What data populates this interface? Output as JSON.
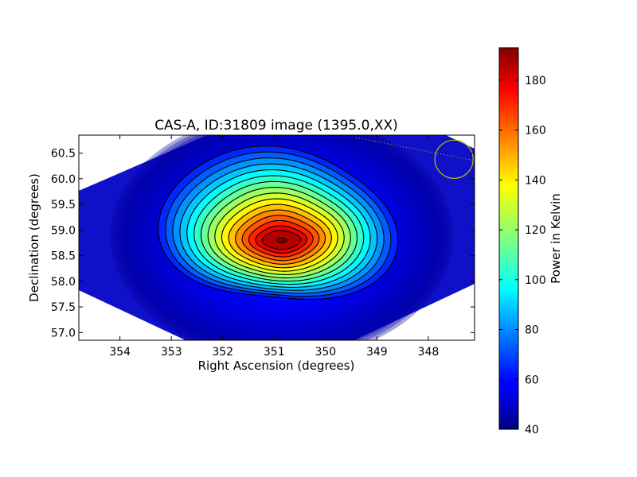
{
  "chart_data": {
    "type": "heatmap",
    "title": "CAS-A, ID:31809 image (1395.0,XX)",
    "xlabel": "Right Ascension (degrees)",
    "ylabel": "Declination (degrees)",
    "xlim": [
      354.8,
      347.1
    ],
    "ylim": [
      56.85,
      60.85
    ],
    "x_ticks": [
      354,
      353,
      352,
      351,
      350,
      349,
      348
    ],
    "x_tick_labels": [
      "354",
      "353",
      "352",
      "351",
      "350",
      "349",
      "348"
    ],
    "y_ticks": [
      57.0,
      57.5,
      58.0,
      58.5,
      59.0,
      59.5,
      60.0,
      60.5
    ],
    "y_tick_labels": [
      "57.0",
      "57.5",
      "58.0",
      "58.5",
      "59.0",
      "59.5",
      "60.0",
      "60.5"
    ],
    "source_peak": {
      "ra": 350.85,
      "dec": 58.8,
      "value": 193
    },
    "background_value": 45,
    "contour_count": 16,
    "beam_marker": {
      "ra": 347.5,
      "dec": 60.38,
      "color": "#bfbf00"
    },
    "colorbar": {
      "label": "Power in Kelvin",
      "range": [
        40,
        193
      ],
      "ticks": [
        40,
        60,
        80,
        100,
        120,
        140,
        160,
        180
      ],
      "tick_labels": [
        "40",
        "60",
        "80",
        "100",
        "120",
        "140",
        "160",
        "180"
      ],
      "colormap": "jet"
    },
    "grid": false
  }
}
